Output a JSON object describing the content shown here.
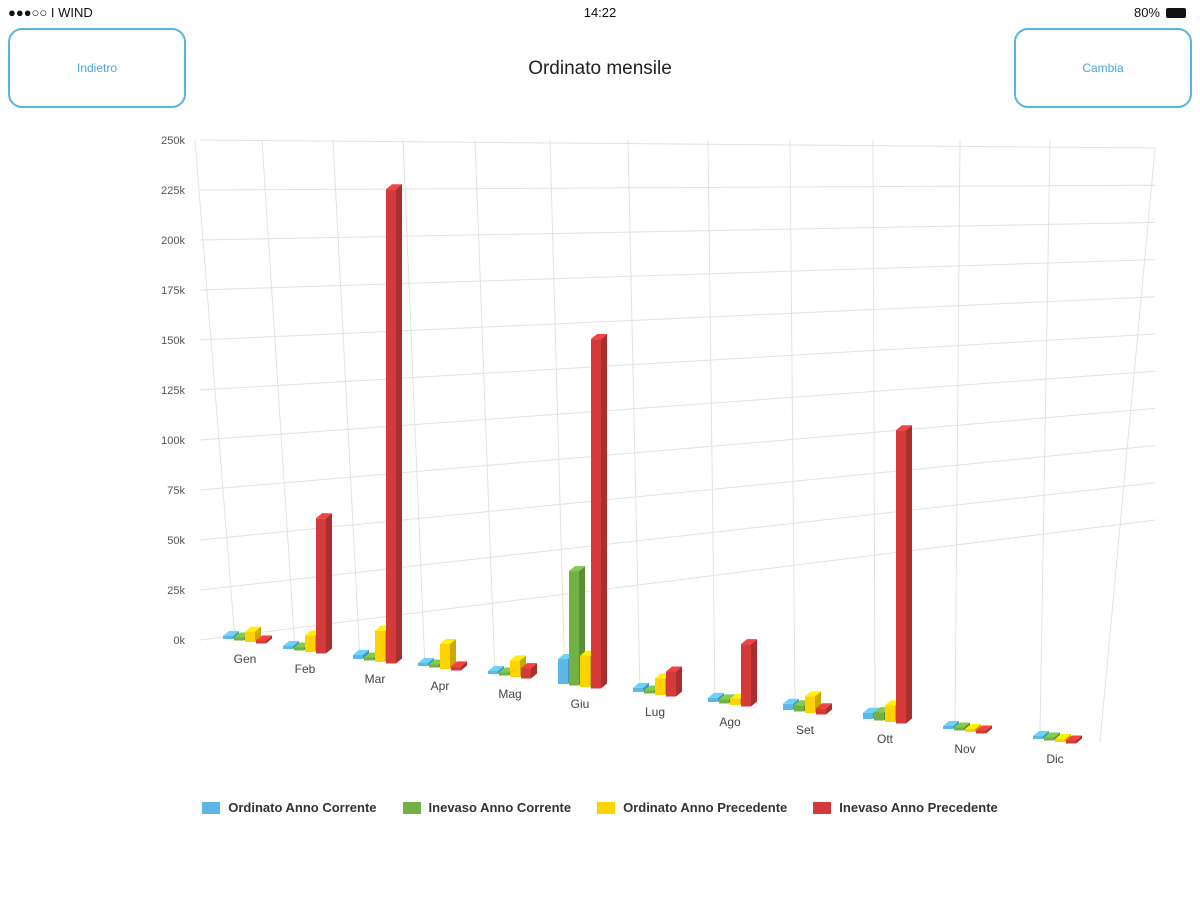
{
  "status_bar": {
    "carrier": "●●●○○ I WIND",
    "time": "14:22",
    "battery": "80%"
  },
  "header": {
    "back_label": "Indietro",
    "title": "Ordinato mensile",
    "change_label": "Cambia"
  },
  "chart_data": {
    "type": "bar",
    "title": "Ordinato mensile",
    "categories": [
      "Gen",
      "Feb",
      "Mar",
      "Apr",
      "Mag",
      "Giu",
      "Lug",
      "Ago",
      "Set",
      "Ott",
      "Nov",
      "Dic"
    ],
    "yticks": [
      "0k",
      "25k",
      "50k",
      "75k",
      "100k",
      "125k",
      "150k",
      "175k",
      "200k",
      "225k",
      "250k"
    ],
    "ylim": [
      0,
      250000
    ],
    "legend_position": "bottom",
    "series": [
      {
        "name": "Ordinato Anno Corrente",
        "color": "#5bb8e6",
        "values": [
          1000,
          1000,
          2000,
          1000,
          1000,
          12000,
          2000,
          2000,
          3000,
          3000,
          1000,
          1000
        ]
      },
      {
        "name": "Inevaso Anno Corrente",
        "color": "#72b244",
        "values": [
          0,
          0,
          0,
          0,
          1000,
          55000,
          1000,
          2000,
          3000,
          4000,
          1000,
          1000
        ]
      },
      {
        "name": "Ordinato Anno Precedente",
        "color": "#ffd200",
        "values": [
          5000,
          8000,
          15000,
          12000,
          8000,
          15000,
          8000,
          3000,
          8000,
          8000,
          1000,
          1000
        ]
      },
      {
        "name": "Inevaso Anno Precedente",
        "color": "#d43a3a",
        "values": [
          1000,
          65000,
          228000,
          2000,
          5000,
          168000,
          12000,
          30000,
          3000,
          141000,
          1000,
          1000
        ]
      }
    ]
  }
}
